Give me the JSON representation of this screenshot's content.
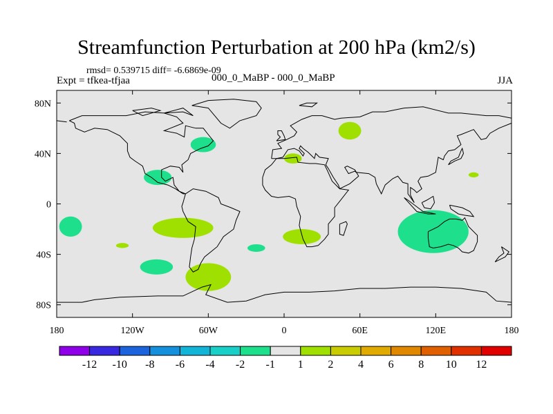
{
  "title": "Streamfunction Perturbation at 200 hPa (km2/s)",
  "stats_line": "rmsd= 0.539715 diff= -6.6869e-09",
  "left_label": "Expt = tfkea-tfjaa",
  "center_label": "000_0_MaBP - 000_0_MaBP",
  "right_label": "JJA",
  "colors": {
    "background": "#e5e5e5",
    "neg_small": "#1ee08c",
    "pos_small": "#a0e000",
    "coast": "#000000"
  },
  "chart_data": {
    "type": "heatmap",
    "title": "Streamfunction Perturbation at 200 hPa (km2/s)",
    "projection": "cylindrical equidistant",
    "xlim": [
      -180,
      180
    ],
    "ylim": [
      -90,
      90
    ],
    "x_ticks": [
      {
        "value": -180,
        "label": "180"
      },
      {
        "value": -120,
        "label": "120W"
      },
      {
        "value": -60,
        "label": "60W"
      },
      {
        "value": 0,
        "label": "0"
      },
      {
        "value": 60,
        "label": "60E"
      },
      {
        "value": 120,
        "label": "120E"
      },
      {
        "value": 180,
        "label": "180"
      }
    ],
    "y_ticks": [
      {
        "value": 80,
        "label": "80N"
      },
      {
        "value": 40,
        "label": "40N"
      },
      {
        "value": 0,
        "label": "0"
      },
      {
        "value": -40,
        "label": "40S"
      },
      {
        "value": -80,
        "label": "80S"
      }
    ],
    "colorbar": {
      "labels": [
        "-12",
        "-10",
        "-8",
        "-6",
        "-4",
        "-2",
        "-1",
        "1",
        "2",
        "4",
        "6",
        "8",
        "10",
        "12"
      ],
      "colors": [
        "#8f00e8",
        "#3828e0",
        "#1c64dc",
        "#1490dc",
        "#12b4d8",
        "#18d0c8",
        "#1ee08c",
        "#e5e5e5",
        "#a0e000",
        "#c8cc00",
        "#e0aa00",
        "#e08800",
        "#e06000",
        "#e03000",
        "#e00000"
      ]
    },
    "features": [
      {
        "lon": -169,
        "lat": -18,
        "rlon": 9,
        "rlat": 8,
        "category": "-2 to -1"
      },
      {
        "lon": -128,
        "lat": -33,
        "rlon": 5,
        "rlat": 2,
        "category": "1 to 2"
      },
      {
        "lon": -101,
        "lat": -50,
        "rlon": 13,
        "rlat": 6,
        "category": "-2 to -1"
      },
      {
        "lon": -100,
        "lat": 21,
        "rlon": 11,
        "rlat": 6,
        "category": "-2 to -1"
      },
      {
        "lon": -80,
        "lat": -19,
        "rlon": 24,
        "rlat": 8,
        "category": "1 to 2"
      },
      {
        "lon": -64,
        "lat": 47,
        "rlon": 10,
        "rlat": 6,
        "category": "-2 to -1"
      },
      {
        "lon": -60,
        "lat": -58,
        "rlon": 18,
        "rlat": 11,
        "category": "1 to 2"
      },
      {
        "lon": -22,
        "lat": -35,
        "rlon": 7,
        "rlat": 3,
        "category": "-2 to -1"
      },
      {
        "lon": 7,
        "lat": 36,
        "rlon": 7,
        "rlat": 4,
        "category": "1 to 2"
      },
      {
        "lon": 14,
        "lat": -26,
        "rlon": 15,
        "rlat": 6,
        "category": "1 to 2"
      },
      {
        "lon": 52,
        "lat": 58,
        "rlon": 9,
        "rlat": 7,
        "category": "1 to 2"
      },
      {
        "lon": 118,
        "lat": -22,
        "rlon": 28,
        "rlat": 17,
        "category": "-2 to -1"
      },
      {
        "lon": 150,
        "lat": 23,
        "rlon": 4,
        "rlat": 2,
        "category": "1 to 2"
      }
    ]
  }
}
